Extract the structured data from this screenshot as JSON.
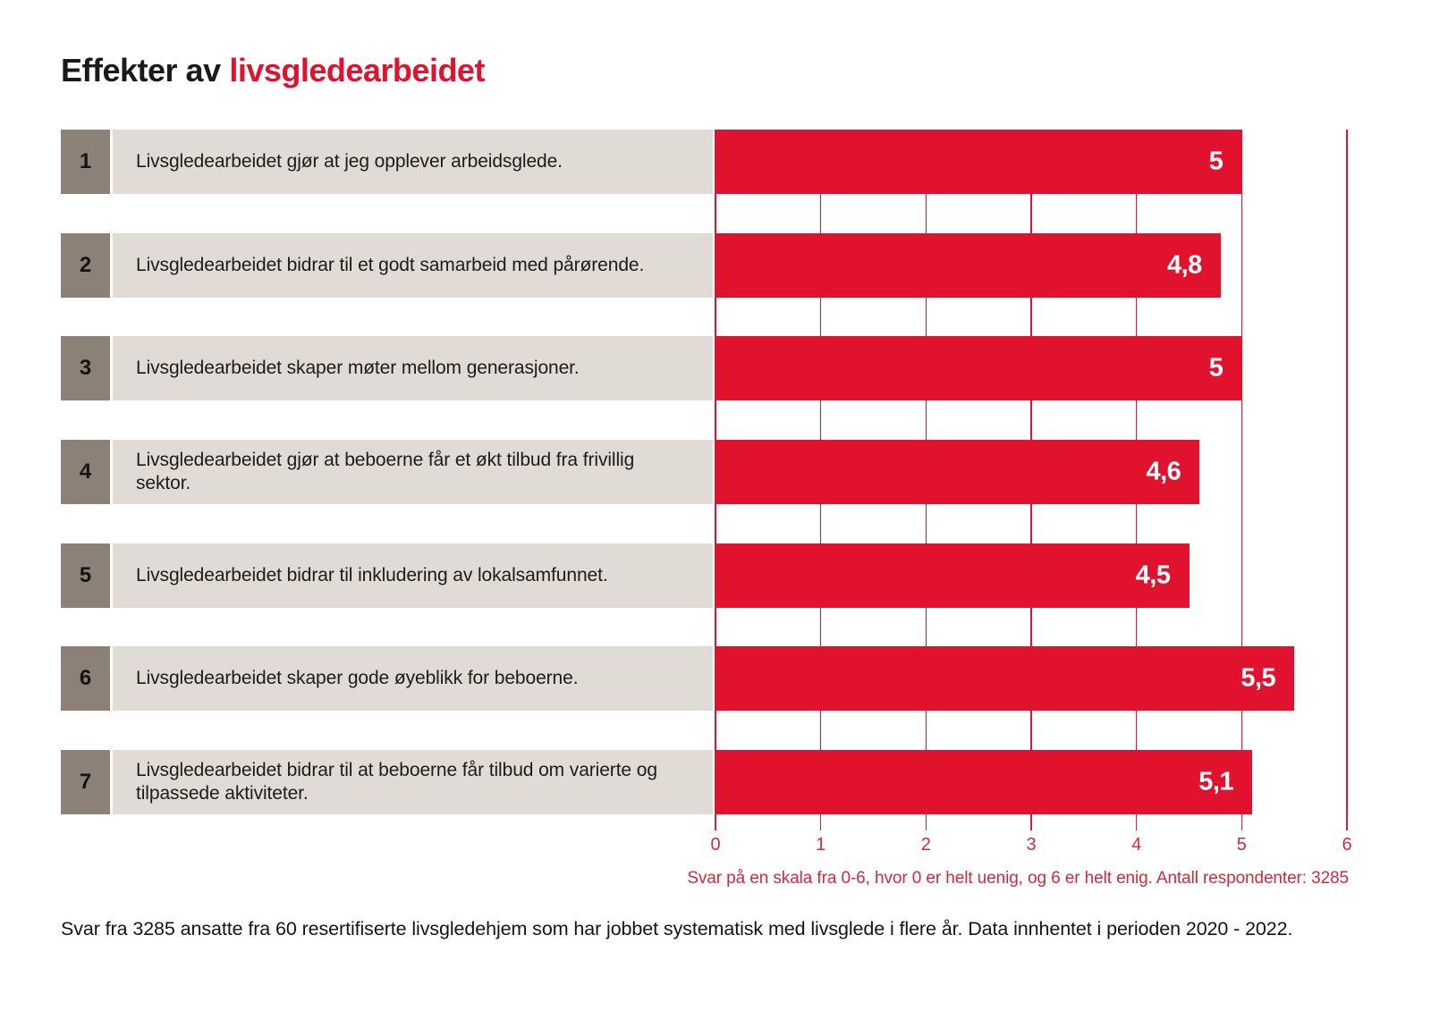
{
  "title": {
    "prefix": "Effekter av",
    "highlight": "livsgledearbeidet"
  },
  "chart_data": {
    "type": "bar",
    "orientation": "horizontal",
    "title": "Effekter av livsgledearbeidet",
    "xlabel": "",
    "ylabel": "",
    "xlim": [
      0,
      6
    ],
    "axis_ticks": [
      0,
      1,
      2,
      3,
      4,
      5,
      6
    ],
    "grid": true,
    "categories": [
      "Livsgledearbeidet gjør at jeg opplever arbeidsglede.",
      "Livsgledearbeidet bidrar til et godt samarbeid med pårørende.",
      "Livsgledearbeidet skaper møter mellom generasjoner.",
      "Livsgledearbeidet gjør at beboerne får et økt tilbud fra frivillig sektor.",
      "Livsgledearbeidet bidrar til inkludering av lokalsamfunnet.",
      "Livsgledearbeidet skaper gode øyeblikk for beboerne.",
      "Livsgledearbeidet bidrar til at beboerne får tilbud om varierte og tilpassede aktiviteter."
    ],
    "values": [
      5,
      4.8,
      5,
      4.6,
      4.5,
      5.5,
      5.1
    ],
    "rows": [
      {
        "num": "1",
        "label": "Livsgledearbeidet gjør at jeg opplever arbeidsglede.",
        "value": 5,
        "value_label": "5"
      },
      {
        "num": "2",
        "label": "Livsgledearbeidet bidrar til et godt samarbeid med pårørende.",
        "value": 4.8,
        "value_label": "4,8"
      },
      {
        "num": "3",
        "label": "Livsgledearbeidet skaper møter mellom generasjoner.",
        "value": 5,
        "value_label": "5"
      },
      {
        "num": "4",
        "label": "Livsgledearbeidet gjør at beboerne får et økt tilbud fra frivillig sektor.",
        "value": 4.6,
        "value_label": "4,6"
      },
      {
        "num": "5",
        "label": "Livsgledearbeidet bidrar til inkludering av lokalsamfunnet.",
        "value": 4.5,
        "value_label": "4,5"
      },
      {
        "num": "6",
        "label": "Livsgledearbeidet skaper gode øyeblikk for beboerne.",
        "value": 5.5,
        "value_label": "5,5"
      },
      {
        "num": "7",
        "label": "Livsgledearbeidet bidrar til at beboerne får tilbud om varierte og tilpassede aktiviteter.",
        "value": 5.1,
        "value_label": "5,1"
      }
    ],
    "footnote": "Svar på en skala fra 0-6, hvor 0 er helt uenig, og 6 er helt enig. Antall respondenter: 3285"
  },
  "caption": "Svar fra 3285 ansatte fra 60 resertifiserte livsgledehjem som har jobbet systematisk med livsglede i flere år. Data innhentet i perioden 2020 - 2022.",
  "colors": {
    "bar_red": "#E0122D",
    "axis_red": "#CE2B3C",
    "badge_taupe": "#8C8177",
    "label_bg": "#E0DCD5",
    "text_black": "#1a1a1a"
  }
}
